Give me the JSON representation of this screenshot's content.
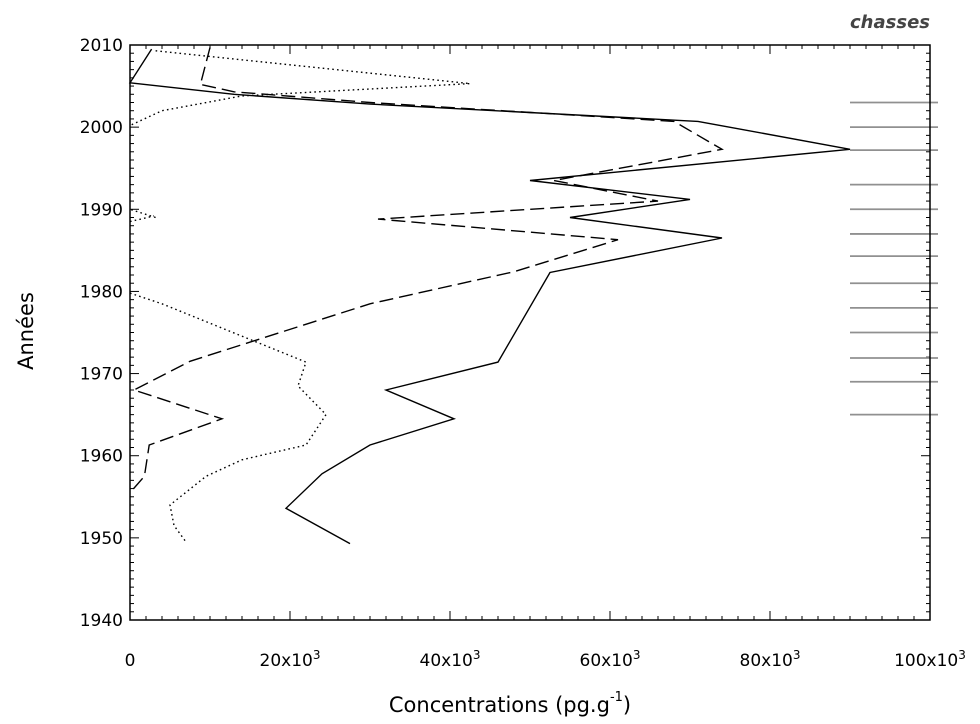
{
  "chart_data": {
    "type": "line",
    "corner_label": "chasses",
    "xlabel": "Concentrations (pg.g",
    "xlabel_superscript": "-1",
    "xlabel_close": ")",
    "ylabel": "Années",
    "xlim": [
      0,
      100000
    ],
    "ylim": [
      1940,
      2010
    ],
    "x_ticks": [
      0,
      20000,
      40000,
      60000,
      80000,
      100000
    ],
    "x_tick_labels": [
      {
        "base": "0",
        "exp": ""
      },
      {
        "base": "20x10",
        "exp": "3"
      },
      {
        "base": "40x10",
        "exp": "3"
      },
      {
        "base": "60x10",
        "exp": "3"
      },
      {
        "base": "80x10",
        "exp": "3"
      },
      {
        "base": "100x10",
        "exp": "3"
      }
    ],
    "y_ticks": [
      1940,
      1950,
      1960,
      1970,
      1980,
      1990,
      2000,
      2010
    ],
    "y_tick_labels": [
      "1940",
      "1950",
      "1960",
      "1970",
      "1980",
      "1990",
      "2000",
      "2010"
    ],
    "grid": false,
    "series": [
      {
        "style": "solid",
        "points": [
          [
            2700,
            2009.5
          ],
          [
            0,
            2005.4
          ],
          [
            13000,
            2004.0
          ],
          [
            30000,
            2002.8
          ],
          [
            71000,
            2000.7
          ],
          [
            90000,
            1997.3
          ],
          [
            50000,
            1993.5
          ],
          [
            70000,
            1991.2
          ],
          [
            55000,
            1989.0
          ],
          [
            74000,
            1986.5
          ],
          [
            52500,
            1982.3
          ],
          [
            46000,
            1971.4
          ],
          [
            32000,
            1968.0
          ],
          [
            40500,
            1964.5
          ],
          [
            30000,
            1961.3
          ],
          [
            24000,
            1957.8
          ],
          [
            19500,
            1953.6
          ],
          [
            27500,
            1949.3
          ]
        ]
      },
      {
        "style": "dashed",
        "points": [
          [
            10000,
            2009.7
          ],
          [
            8800,
            2005.2
          ],
          [
            13000,
            2004.3
          ],
          [
            30000,
            2003.0
          ],
          [
            68000,
            2000.7
          ],
          [
            74000,
            1997.3
          ],
          [
            53000,
            1993.5
          ],
          [
            66000,
            1991.0
          ],
          [
            31000,
            1988.8
          ],
          [
            61000,
            1986.3
          ],
          [
            48000,
            1982.4
          ],
          [
            30000,
            1978.5
          ],
          [
            7500,
            1971.5
          ],
          [
            500,
            1968.0
          ],
          [
            11500,
            1964.5
          ],
          [
            2400,
            1961.3
          ],
          [
            1800,
            1957.5
          ],
          [
            0,
            1955.5
          ]
        ]
      },
      {
        "style": "dotted",
        "points": [
          [
            3200,
            2009.3
          ],
          [
            42500,
            2005.3
          ],
          [
            14000,
            2003.8
          ],
          [
            4000,
            2002.0
          ],
          [
            0,
            2000.2
          ],
          null,
          [
            3200,
            1989.0
          ],
          [
            0,
            1990.0
          ],
          null,
          [
            0,
            1988.5
          ],
          [
            3000,
            1989.2
          ],
          null,
          [
            0,
            1979.8
          ],
          [
            4000,
            1978.5
          ],
          [
            22000,
            1971.4
          ],
          [
            21000,
            1968.5
          ],
          [
            24500,
            1965.0
          ],
          [
            22000,
            1961.3
          ],
          [
            14000,
            1959.5
          ],
          [
            9500,
            1957.5
          ],
          [
            5000,
            1954.0
          ],
          [
            5500,
            1951.5
          ],
          [
            7000,
            1949.5
          ]
        ]
      }
    ],
    "markers": {
      "style": "gray-horizontal-bars",
      "color": "#909090",
      "x_range": [
        90000,
        101000
      ],
      "years": [
        2003,
        2000,
        1997.2,
        1993,
        1990,
        1987,
        1984.3,
        1981,
        1978,
        1975,
        1971.9,
        1969,
        1965
      ]
    }
  }
}
